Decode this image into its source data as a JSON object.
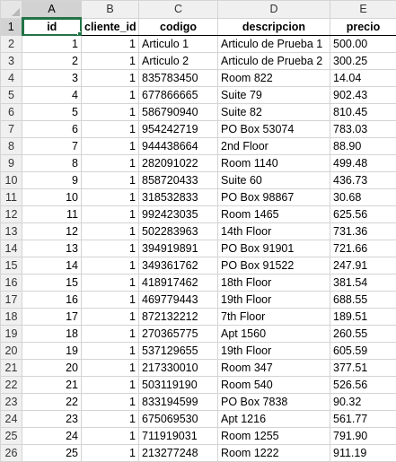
{
  "columns": [
    "A",
    "B",
    "C",
    "D",
    "E"
  ],
  "header_row": [
    "id",
    "cliente_id",
    "codigo",
    "descripcion",
    "precio"
  ],
  "rows": [
    [
      "1",
      "1",
      "Articulo 1",
      "Articulo de Prueba 1",
      "500.00"
    ],
    [
      "2",
      "1",
      "Articulo 2",
      "Articulo de Prueba 2",
      "300.25"
    ],
    [
      "3",
      "1",
      "835783450",
      "Room 822",
      "14.04"
    ],
    [
      "4",
      "1",
      "677866665",
      "Suite 79",
      "902.43"
    ],
    [
      "5",
      "1",
      "586790940",
      "Suite 82",
      "810.45"
    ],
    [
      "6",
      "1",
      "954242719",
      "PO Box 53074",
      "783.03"
    ],
    [
      "7",
      "1",
      "944438664",
      "2nd Floor",
      "88.90"
    ],
    [
      "8",
      "1",
      "282091022",
      "Room 1140",
      "499.48"
    ],
    [
      "9",
      "1",
      "858720433",
      "Suite 60",
      "436.73"
    ],
    [
      "10",
      "1",
      "318532833",
      "PO Box 98867",
      "30.68"
    ],
    [
      "11",
      "1",
      "992423035",
      "Room 1465",
      "625.56"
    ],
    [
      "12",
      "1",
      "502283963",
      "14th Floor",
      "731.36"
    ],
    [
      "13",
      "1",
      "394919891",
      "PO Box 91901",
      "721.66"
    ],
    [
      "14",
      "1",
      "349361762",
      "PO Box 91522",
      "247.91"
    ],
    [
      "15",
      "1",
      "418917462",
      "18th Floor",
      "381.54"
    ],
    [
      "16",
      "1",
      "469779443",
      "19th Floor",
      "688.55"
    ],
    [
      "17",
      "1",
      "872132212",
      "7th Floor",
      "189.51"
    ],
    [
      "18",
      "1",
      "270365775",
      "Apt 1560",
      "260.55"
    ],
    [
      "19",
      "1",
      "537129655",
      "19th Floor",
      "605.59"
    ],
    [
      "20",
      "1",
      "217330010",
      "Room 347",
      "377.51"
    ],
    [
      "21",
      "1",
      "503119190",
      "Room 540",
      "526.56"
    ],
    [
      "22",
      "1",
      "833194599",
      "PO Box 7838",
      "90.32"
    ],
    [
      "23",
      "1",
      "675069530",
      "Apt 1216",
      "561.77"
    ],
    [
      "24",
      "1",
      "711919031",
      "Room 1255",
      "791.90"
    ],
    [
      "25",
      "1",
      "213277248",
      "Room 1222",
      "911.19"
    ]
  ],
  "active_cell": "A1",
  "colors": {
    "accent": "#217346",
    "header_bg": "#f0f0f0",
    "selected_header_bg": "#d2d2d2",
    "gridline": "#d4d4d4"
  }
}
